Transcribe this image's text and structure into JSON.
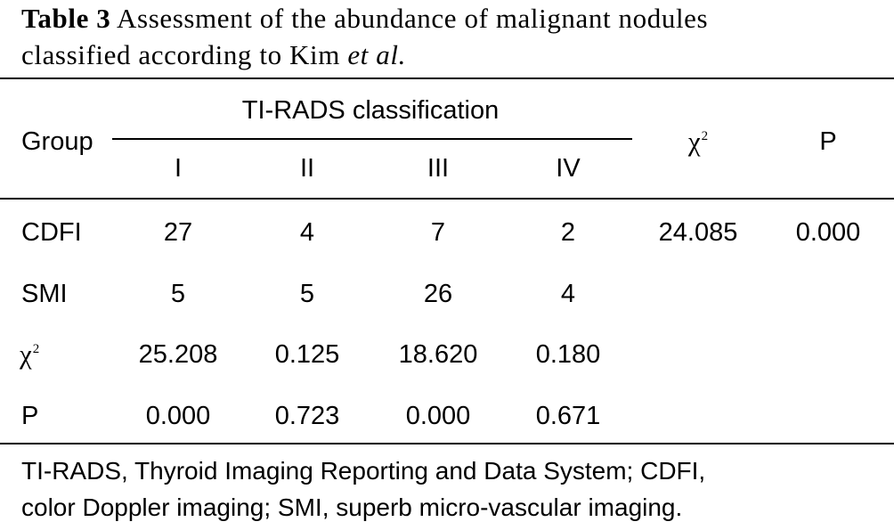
{
  "caption": {
    "label": "Table 3",
    "text_line1": "Assessment of the abundance of malignant nodules",
    "text_line2_start": "classified according to Kim",
    "text_line2_italic": "et al."
  },
  "table": {
    "header": {
      "group": "Group",
      "spanning": "TI-RADS classification",
      "sub_columns": [
        "I",
        "II",
        "III",
        "IV"
      ],
      "chi_symbol": "χ",
      "chi_sup": "2",
      "p": "P"
    },
    "rows": [
      {
        "label": "CDFI",
        "values": [
          "27",
          "4",
          "7",
          "2"
        ],
        "chi": "24.085",
        "p": "0.000"
      },
      {
        "label": "SMI",
        "values": [
          "5",
          "5",
          "26",
          "4"
        ],
        "chi": "",
        "p": ""
      },
      {
        "label_symbol": "χ",
        "label_sup": "2",
        "values": [
          "25.208",
          "0.125",
          "18.620",
          "0.180"
        ],
        "chi": "",
        "p": ""
      },
      {
        "label": "P",
        "values": [
          "0.000",
          "0.723",
          "0.000",
          "0.671"
        ],
        "chi": "",
        "p": ""
      }
    ]
  },
  "footnote": {
    "line1": "TI-RADS, Thyroid Imaging Reporting and Data System; CDFI,",
    "line2": "color Doppler imaging; SMI, superb micro-vascular imaging."
  }
}
